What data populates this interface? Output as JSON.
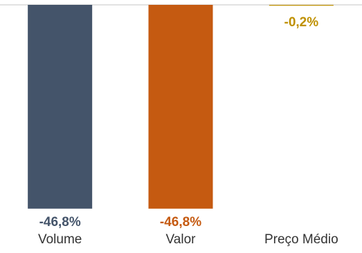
{
  "chart_data": {
    "type": "bar",
    "categories": [
      "Volume",
      "Valor",
      "Preço Médio"
    ],
    "values": [
      -46.8,
      -46.8,
      -0.2
    ],
    "data_labels": [
      "-46,8%",
      "-46,8%",
      "-0,2%"
    ],
    "colors": [
      "#44546A",
      "#C55A11",
      "#BF9000"
    ],
    "baseline_color": "#D9D9D9",
    "ylim": [
      -50,
      0
    ],
    "grid": false,
    "legend": "none"
  }
}
